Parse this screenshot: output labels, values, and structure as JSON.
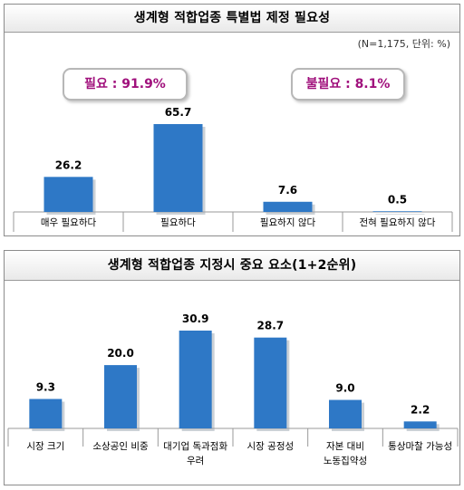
{
  "charts": {
    "necessity": {
      "title": "생계형 적합업종 특별법 제정 필요성",
      "note": "(N=1,175,  단위: %)",
      "callout_need": "필요 : 91.9%",
      "callout_noneed": "불필요 : 8.1%",
      "accent_color": "#a0107c"
    },
    "factors": {
      "title": "생계형 적합업종 지정시 중요 요소(1+2순위)"
    }
  },
  "bar_color": "#2e78c6",
  "chart_data": [
    {
      "type": "bar",
      "title": "생계형 적합업종 특별법 제정 필요성",
      "categories": [
        "매우 필요하다",
        "필요하다",
        "필요하지 않다",
        "전혀 필요하지 않다"
      ],
      "values": [
        26.2,
        65.7,
        7.6,
        0.5
      ],
      "value_labels": [
        "26.2",
        "65.7",
        "7.6",
        "0.5"
      ],
      "ylim": [
        0,
        70
      ],
      "unit": "%",
      "grid": false
    },
    {
      "type": "bar",
      "title": "생계형 적합업종 지정시 중요 요소(1+2순위)",
      "categories": [
        [
          "시장 크기"
        ],
        [
          "소상공인 비중"
        ],
        [
          "대기업 독과점화",
          "우려"
        ],
        [
          "시장 공정성"
        ],
        [
          "자본 대비",
          "노동집약성"
        ],
        [
          "통상마찰 가능성"
        ]
      ],
      "values": [
        9.3,
        20.0,
        30.9,
        28.7,
        9.0,
        2.2
      ],
      "value_labels": [
        "9.3",
        "20.0",
        "30.9",
        "28.7",
        "9.0",
        "2.2"
      ],
      "ylim": [
        0,
        35
      ],
      "grid": false
    }
  ]
}
